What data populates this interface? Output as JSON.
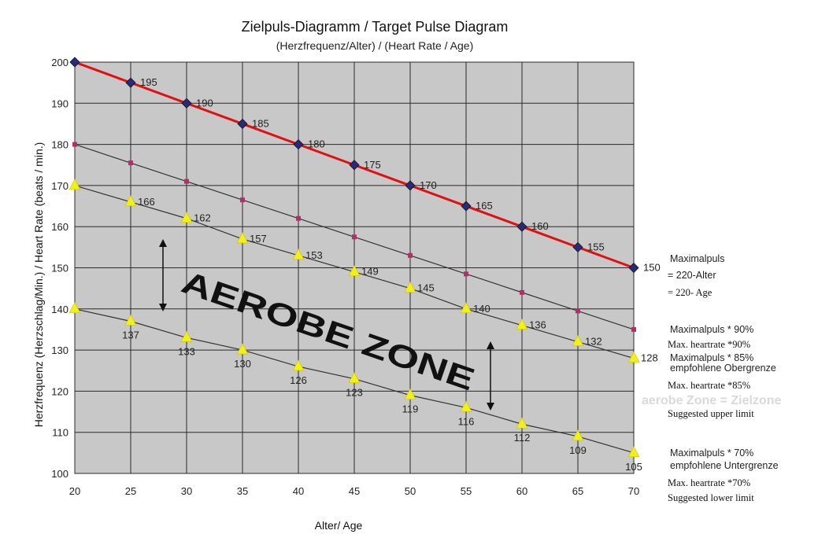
{
  "chart_data": {
    "type": "line",
    "title": "Zielpuls-Diagramm / Target Pulse Diagram",
    "subtitle": "(Herzfrequenz/Alter) / (Heart Rate / Age)",
    "xlabel": "Alter/ Age",
    "ylabel": "Herzfrequenz (Herzschlag/Min.) / Heart Rate (beats / min.)",
    "xlim": [
      20,
      70
    ],
    "ylim": [
      100,
      200
    ],
    "x_ticks": [
      20,
      25,
      30,
      35,
      40,
      45,
      50,
      55,
      60,
      65,
      70
    ],
    "y_ticks": [
      100,
      110,
      120,
      130,
      140,
      150,
      160,
      170,
      180,
      190,
      200
    ],
    "grid": true,
    "x": [
      20,
      25,
      30,
      35,
      40,
      45,
      50,
      55,
      60,
      65,
      70
    ],
    "series": [
      {
        "name": "Maximalpuls = 220-Alter",
        "values": [
          200,
          195,
          190,
          185,
          180,
          175,
          170,
          165,
          160,
          155,
          150
        ],
        "labels": [
          "",
          "195",
          "190",
          "185",
          "180",
          "175",
          "170",
          "165",
          "160",
          "155",
          "150"
        ],
        "color": "#e01010",
        "marker": "diamond",
        "marker_color": "#2a2a7a"
      },
      {
        "name": "Maximalpuls * 90%",
        "values": [
          180,
          175.5,
          171,
          166.5,
          162,
          157.5,
          153,
          148.5,
          144,
          139.5,
          135
        ],
        "labels": [],
        "color": "#333333",
        "marker": "square",
        "marker_color": "#b0306a"
      },
      {
        "name": "Maximalpuls * 85%",
        "values": [
          170,
          166,
          162,
          157,
          153,
          149,
          145,
          140,
          136,
          132,
          128
        ],
        "labels": [
          "",
          "166",
          "162",
          "157",
          "153",
          "149",
          "145",
          "140",
          "136",
          "132",
          "128"
        ],
        "color": "#333333",
        "marker": "triangle",
        "marker_color": "#f2ef1a"
      },
      {
        "name": "Maximalpuls * 70%",
        "values": [
          140,
          137,
          133,
          130,
          126,
          123,
          119,
          116,
          112,
          109,
          105
        ],
        "labels": [
          "",
          "137",
          "133",
          "130",
          "126",
          "123",
          "119",
          "116",
          "112",
          "109",
          "105"
        ],
        "color": "#333333",
        "marker": "triangle",
        "marker_color": "#f2ef1a"
      }
    ],
    "annotations": {
      "zone_text": "AEROBE ZONE",
      "max_de_line1": "Maximalpuls",
      "max_de_line2": "= 220-Alter",
      "max_en": "= 220- Age",
      "p90_de": "Maximalpuls * 90%",
      "p90_en": "Max. heartrate *90%",
      "p85_de_line1": "Maximalpuls * 85%",
      "p85_de_line2": "empfohlene Obergrenze",
      "p85_en_line1": "Max. heartrate *85%",
      "p85_en_line2": "Suggested upper limit",
      "watermark": "aerobe Zone = Zielzone",
      "p70_de_line1": "Maximalpuls * 70%",
      "p70_de_line2": "empfohlene Untergrenze",
      "p70_en_line1": "Max. heartrate *70%",
      "p70_en_line2": "Suggested lower limit"
    },
    "colors": {
      "plot_background": "#c8c8c8",
      "grid": "#2a2a2a"
    }
  }
}
